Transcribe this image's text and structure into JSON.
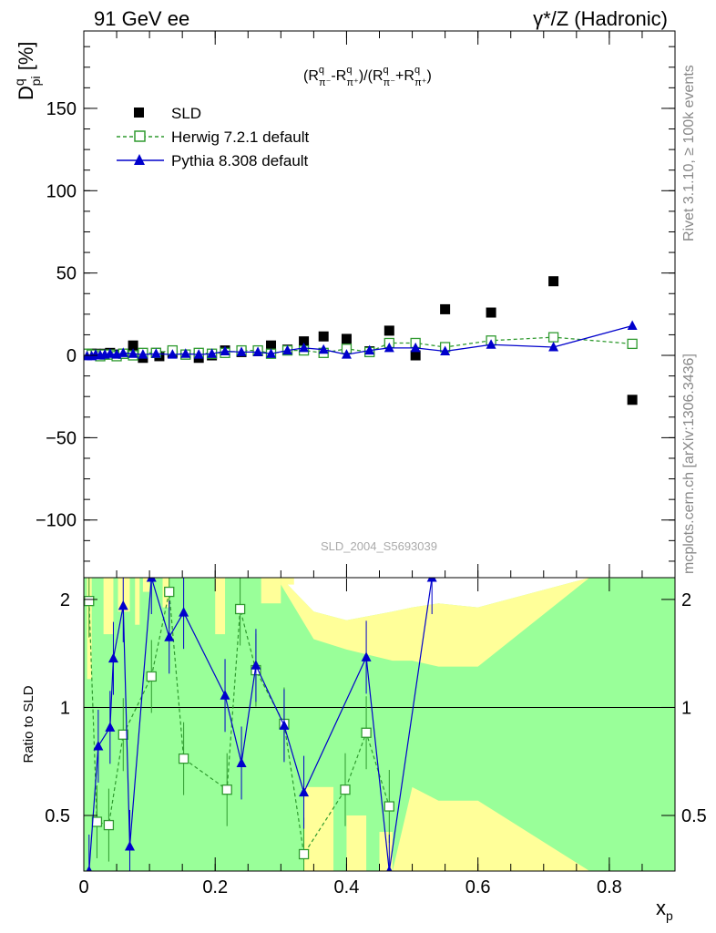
{
  "header": {
    "left": "91 GeV ee",
    "right": "γ*/Z (Hadronic)"
  },
  "side_labels": {
    "rivet": "Rivet 3.1.10, ≥ 100k events",
    "mcplots": "mcplots.cern.ch [arXiv:1306.3436]"
  },
  "watermark": "SLD_2004_S5693039",
  "chart_data": [
    {
      "type": "scatter",
      "panel": "main",
      "ylabel": "D^q_pi [%]",
      "formula": "(R^q_π⁻-R^q_π⁺)/(R^q_π⁻+R^q_π⁺)",
      "xlim": [
        0,
        0.9
      ],
      "ylim": [
        -135,
        197
      ],
      "yticks": [
        -100,
        -50,
        0,
        50,
        100,
        150
      ],
      "legend_position": "top-left",
      "series": [
        {
          "name": "SLD",
          "marker": "filled-square",
          "color": "#000000",
          "points": [
            [
              0.005,
              0.5
            ],
            [
              0.012,
              1.0
            ],
            [
              0.018,
              1.0
            ],
            [
              0.025,
              0.5
            ],
            [
              0.032,
              1.0
            ],
            [
              0.04,
              1.5
            ],
            [
              0.05,
              0.5
            ],
            [
              0.06,
              1.0
            ],
            [
              0.075,
              6.0
            ],
            [
              0.09,
              -1.5
            ],
            [
              0.11,
              1.5
            ],
            [
              0.115,
              -0.5
            ],
            [
              0.135,
              1.5
            ],
            [
              0.155,
              0.5
            ],
            [
              0.175,
              -1.5
            ],
            [
              0.195,
              0.0
            ],
            [
              0.215,
              3.0
            ],
            [
              0.24,
              2.0
            ],
            [
              0.265,
              2.5
            ],
            [
              0.285,
              6.0
            ],
            [
              0.31,
              3.5
            ],
            [
              0.335,
              8.5
            ],
            [
              0.365,
              11.5
            ],
            [
              0.4,
              10.0
            ],
            [
              0.435,
              2.5
            ],
            [
              0.465,
              15.0
            ],
            [
              0.505,
              0.0
            ],
            [
              0.55,
              28.0
            ],
            [
              0.62,
              26.0
            ],
            [
              0.715,
              45.0
            ],
            [
              0.835,
              -27.0
            ]
          ]
        },
        {
          "name": "Herwig 7.2.1 default",
          "marker": "open-square",
          "line": "dashed",
          "color": "#2f9a2f",
          "points": [
            [
              0.005,
              1.0
            ],
            [
              0.012,
              0.5
            ],
            [
              0.018,
              0.5
            ],
            [
              0.025,
              -0.5
            ],
            [
              0.032,
              0.5
            ],
            [
              0.04,
              0.5
            ],
            [
              0.05,
              -0.5
            ],
            [
              0.06,
              1.0
            ],
            [
              0.075,
              0.0
            ],
            [
              0.09,
              1.5
            ],
            [
              0.11,
              1.5
            ],
            [
              0.135,
              3.0
            ],
            [
              0.155,
              0.5
            ],
            [
              0.175,
              1.5
            ],
            [
              0.195,
              1.0
            ],
            [
              0.215,
              1.5
            ],
            [
              0.24,
              3.0
            ],
            [
              0.265,
              3.0
            ],
            [
              0.285,
              1.0
            ],
            [
              0.31,
              3.0
            ],
            [
              0.335,
              3.0
            ],
            [
              0.365,
              1.5
            ],
            [
              0.4,
              4.0
            ],
            [
              0.435,
              2.0
            ],
            [
              0.465,
              7.5
            ],
            [
              0.505,
              7.5
            ],
            [
              0.55,
              5.0
            ],
            [
              0.62,
              9.0
            ],
            [
              0.715,
              11.0
            ],
            [
              0.835,
              7.0
            ]
          ]
        },
        {
          "name": "Pythia 8.308 default",
          "marker": "filled-triangle",
          "line": "solid",
          "color": "#0000cc",
          "points": [
            [
              0.005,
              -0.5
            ],
            [
              0.012,
              -0.5
            ],
            [
              0.018,
              0.5
            ],
            [
              0.025,
              0.0
            ],
            [
              0.032,
              0.5
            ],
            [
              0.04,
              1.0
            ],
            [
              0.05,
              0.5
            ],
            [
              0.06,
              1.5
            ],
            [
              0.075,
              1.0
            ],
            [
              0.09,
              0.5
            ],
            [
              0.11,
              1.0
            ],
            [
              0.135,
              0.5
            ],
            [
              0.155,
              1.0
            ],
            [
              0.175,
              0.5
            ],
            [
              0.195,
              1.0
            ],
            [
              0.215,
              2.5
            ],
            [
              0.24,
              2.0
            ],
            [
              0.265,
              2.0
            ],
            [
              0.285,
              1.0
            ],
            [
              0.31,
              3.0
            ],
            [
              0.335,
              4.5
            ],
            [
              0.365,
              3.5
            ],
            [
              0.4,
              0.5
            ],
            [
              0.435,
              3.0
            ],
            [
              0.465,
              4.5
            ],
            [
              0.505,
              4.5
            ],
            [
              0.55,
              2.5
            ],
            [
              0.62,
              6.5
            ],
            [
              0.715,
              5.0
            ],
            [
              0.835,
              18.0
            ]
          ]
        }
      ]
    },
    {
      "type": "line",
      "panel": "ratio",
      "ylabel": "Ratio to SLD",
      "xlabel": "x_p",
      "xlim": [
        0,
        0.9
      ],
      "ylim": [
        0.35,
        2.3
      ],
      "yticks": [
        0.5,
        1,
        2
      ],
      "xticks": [
        0,
        0.2,
        0.4,
        0.6,
        0.8
      ],
      "reference_line": 1,
      "bands": {
        "yellow": "#ffff99",
        "green": "#99ff99",
        "yellow_lower": [
          [
            0.0,
            0.35
          ],
          [
            0.47,
            0.35
          ],
          [
            0.5,
            0.35
          ],
          [
            0.54,
            0.35
          ],
          [
            0.77,
            0.35
          ]
        ],
        "green_upper": [
          [
            0.3,
            2.2
          ],
          [
            0.35,
            1.55
          ],
          [
            0.4,
            1.45
          ],
          [
            0.47,
            1.35
          ],
          [
            0.5,
            1.35
          ],
          [
            0.54,
            1.3
          ],
          [
            0.6,
            1.3
          ],
          [
            0.77,
            2.3
          ],
          [
            0.9,
            2.3
          ]
        ],
        "green_lower": [
          [
            0.3,
            0.35
          ],
          [
            0.35,
            0.35
          ],
          [
            0.4,
            0.35
          ],
          [
            0.47,
            0.35
          ],
          [
            0.5,
            0.6
          ],
          [
            0.54,
            0.55
          ],
          [
            0.6,
            0.55
          ],
          [
            0.77,
            0.35
          ],
          [
            0.9,
            0.35
          ]
        ],
        "yellow_upper": [
          [
            0.3,
            2.3
          ],
          [
            0.35,
            1.85
          ],
          [
            0.4,
            1.75
          ],
          [
            0.47,
            1.85
          ],
          [
            0.5,
            1.9
          ],
          [
            0.54,
            1.95
          ],
          [
            0.6,
            1.9
          ],
          [
            0.77,
            2.3
          ],
          [
            0.9,
            2.3
          ]
        ]
      },
      "series": [
        {
          "name": "Herwig 7.2.1 default",
          "color": "#2f9a2f",
          "points": [
            [
              0.008,
              1.98
            ],
            [
              0.02,
              0.48
            ],
            [
              0.038,
              0.47
            ],
            [
              0.06,
              0.84
            ],
            [
              0.103,
              1.22
            ],
            [
              0.13,
              2.1
            ],
            [
              0.152,
              0.72
            ],
            [
              0.218,
              0.59
            ],
            [
              0.238,
              1.88
            ],
            [
              0.262,
              1.27
            ],
            [
              0.305,
              0.9
            ],
            [
              0.335,
              0.39
            ],
            [
              0.398,
              0.59
            ],
            [
              0.43,
              0.85
            ],
            [
              0.465,
              0.53
            ]
          ]
        },
        {
          "name": "Pythia 8.308 default",
          "color": "#0000cc",
          "points": [
            [
              0.008,
              0.35
            ],
            [
              0.022,
              0.78
            ],
            [
              0.04,
              0.88
            ],
            [
              0.045,
              1.37
            ],
            [
              0.06,
              1.92
            ],
            [
              0.07,
              0.41
            ],
            [
              0.103,
              2.3
            ],
            [
              0.13,
              1.57
            ],
            [
              0.152,
              1.84
            ],
            [
              0.215,
              1.08
            ],
            [
              0.24,
              0.7
            ],
            [
              0.262,
              1.31
            ],
            [
              0.305,
              0.89
            ],
            [
              0.335,
              0.58
            ],
            [
              0.43,
              1.38
            ],
            [
              0.465,
              0.35
            ],
            [
              0.53,
              2.3
            ]
          ]
        }
      ]
    }
  ]
}
